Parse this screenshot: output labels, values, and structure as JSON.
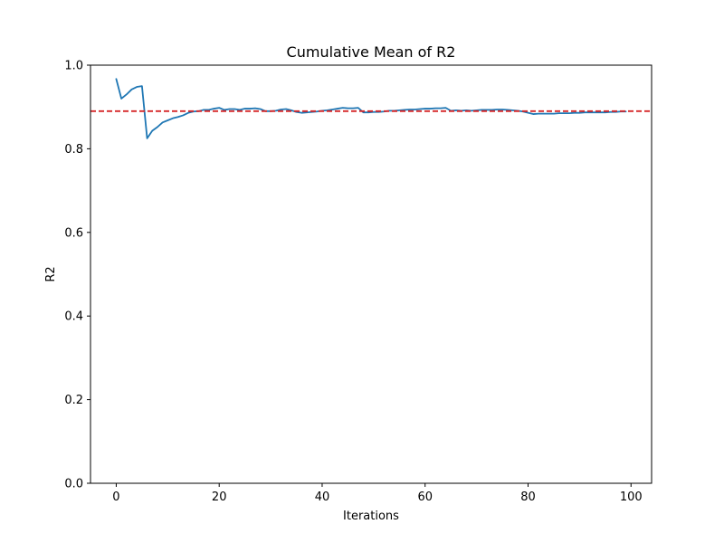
{
  "chart_data": {
    "type": "line",
    "title": "Cumulative Mean of R2",
    "xlabel": "Iterations",
    "ylabel": "R2",
    "xlim": [
      -5,
      104
    ],
    "ylim": [
      0.0,
      1.0
    ],
    "xticks": [
      0,
      20,
      40,
      60,
      80,
      100
    ],
    "yticks": [
      0.0,
      0.2,
      0.4,
      0.6,
      0.8,
      1.0
    ],
    "xtick_labels": [
      "0",
      "20",
      "40",
      "60",
      "80",
      "100"
    ],
    "ytick_labels": [
      "0.0",
      "0.2",
      "0.4",
      "0.6",
      "0.8",
      "1.0"
    ],
    "grid": false,
    "series": [
      {
        "color": "#1f77b4",
        "style": "solid",
        "x": [
          0,
          1,
          2,
          3,
          4,
          5,
          6,
          7,
          8,
          9,
          10,
          11,
          12,
          13,
          14,
          15,
          16,
          17,
          18,
          19,
          20,
          21,
          22,
          23,
          24,
          25,
          26,
          27,
          28,
          29,
          30,
          31,
          32,
          33,
          34,
          35,
          36,
          37,
          38,
          39,
          40,
          41,
          42,
          43,
          44,
          45,
          46,
          47,
          48,
          49,
          50,
          51,
          52,
          53,
          54,
          55,
          56,
          57,
          58,
          59,
          60,
          61,
          62,
          63,
          64,
          65,
          66,
          67,
          68,
          69,
          70,
          71,
          72,
          73,
          74,
          75,
          76,
          77,
          78,
          79,
          80,
          81,
          82,
          83,
          84,
          85,
          86,
          87,
          88,
          89,
          90,
          91,
          92,
          93,
          94,
          95,
          96,
          97,
          98,
          99
        ],
        "y": [
          0.967,
          0.92,
          0.93,
          0.942,
          0.948,
          0.95,
          0.825,
          0.843,
          0.852,
          0.863,
          0.868,
          0.873,
          0.876,
          0.88,
          0.886,
          0.889,
          0.89,
          0.893,
          0.893,
          0.896,
          0.898,
          0.893,
          0.895,
          0.895,
          0.893,
          0.896,
          0.896,
          0.897,
          0.895,
          0.89,
          0.89,
          0.891,
          0.894,
          0.895,
          0.892,
          0.888,
          0.886,
          0.887,
          0.888,
          0.889,
          0.891,
          0.892,
          0.894,
          0.896,
          0.898,
          0.897,
          0.897,
          0.898,
          0.887,
          0.887,
          0.888,
          0.888,
          0.889,
          0.891,
          0.891,
          0.892,
          0.893,
          0.894,
          0.894,
          0.895,
          0.896,
          0.896,
          0.897,
          0.897,
          0.898,
          0.891,
          0.892,
          0.891,
          0.892,
          0.891,
          0.892,
          0.893,
          0.893,
          0.893,
          0.894,
          0.894,
          0.893,
          0.892,
          0.891,
          0.889,
          0.886,
          0.883,
          0.884,
          0.884,
          0.884,
          0.884,
          0.885,
          0.885,
          0.885,
          0.886,
          0.886,
          0.887,
          0.887,
          0.887,
          0.887,
          0.887,
          0.888,
          0.888,
          0.889,
          0.889
        ]
      }
    ],
    "hlines": [
      {
        "y": 0.89,
        "color": "#d62728",
        "style": "dashed"
      }
    ]
  }
}
